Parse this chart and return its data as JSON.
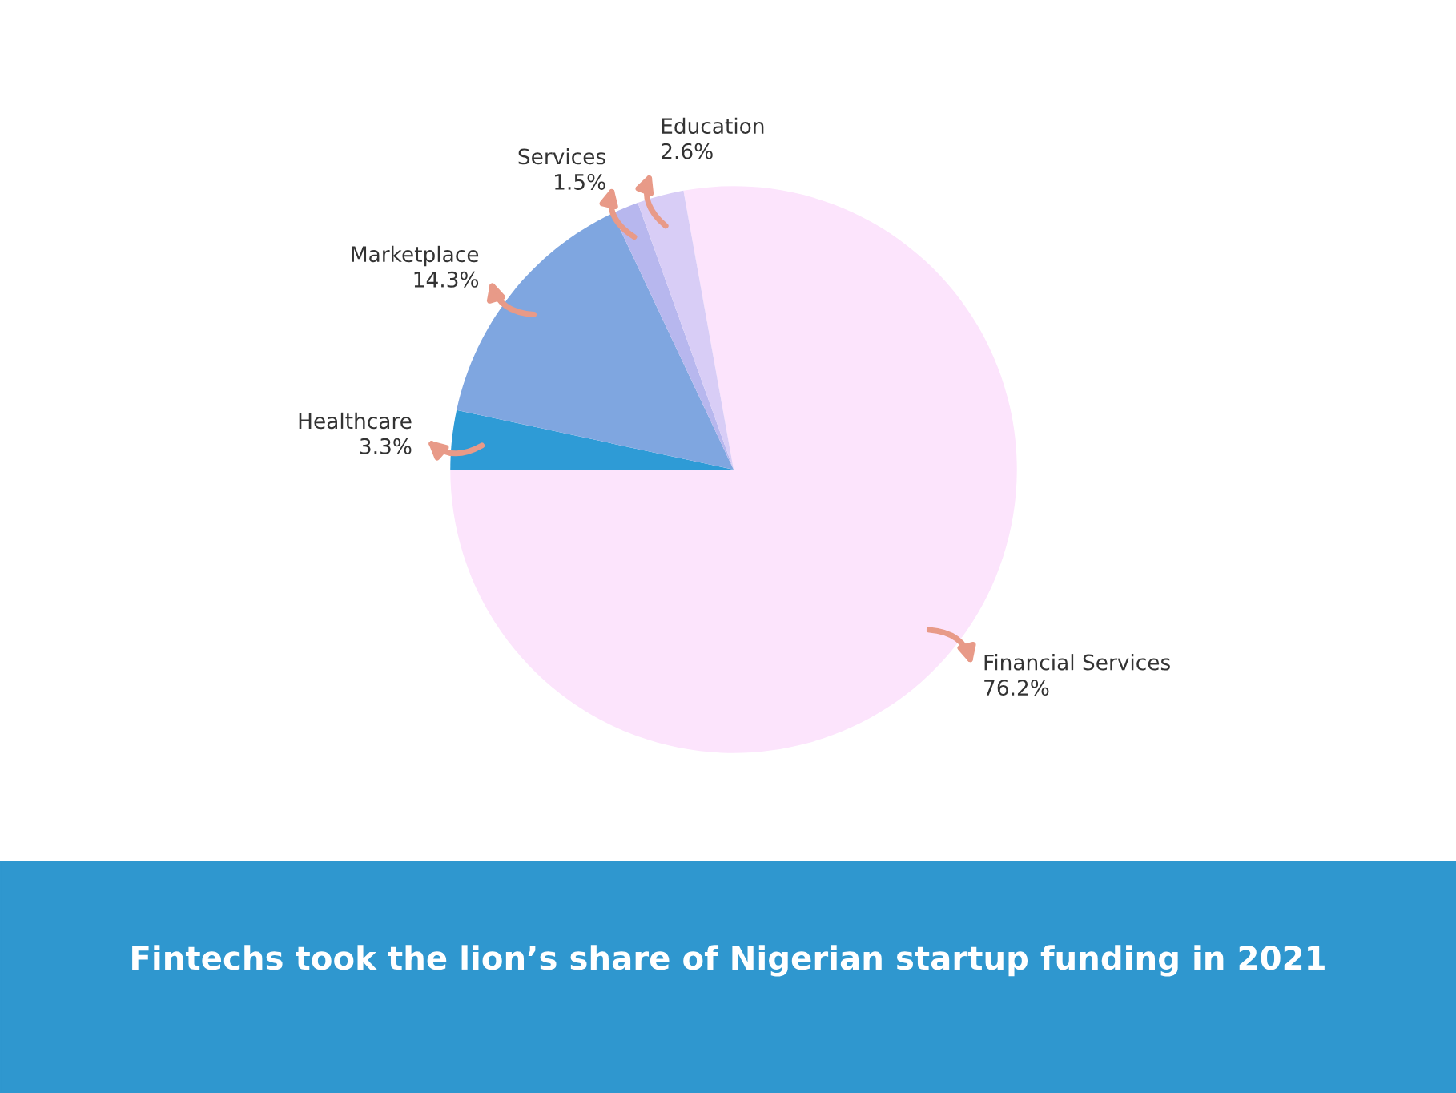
{
  "chart_data": {
    "type": "pie",
    "title": "Fintechs took the lion’s share of Nigerian startup funding in 2021",
    "categories": [
      "Financial Services",
      "Healthcare",
      "Marketplace",
      "Services",
      "Education"
    ],
    "values": [
      76.2,
      3.3,
      14.3,
      1.5,
      2.6
    ],
    "value_labels": [
      "76.2%",
      "3.3%",
      "14.3%",
      "1.5%",
      "2.6%"
    ],
    "colors": [
      "#fce4fc",
      "#2e9bd6",
      "#7fa6e0",
      "#b7b7ee",
      "#d8cdf6"
    ]
  }
}
